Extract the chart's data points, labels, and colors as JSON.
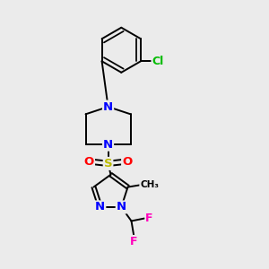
{
  "background_color": "#ebebeb",
  "atom_colors": {
    "N": "#0000ff",
    "O": "#ff0000",
    "S": "#bbbb00",
    "Cl": "#00bb00",
    "F": "#ff00bb",
    "C": "#000000"
  },
  "bond_color": "#000000",
  "bond_width": 1.4,
  "dbo": 0.08,
  "fs": 9.5
}
